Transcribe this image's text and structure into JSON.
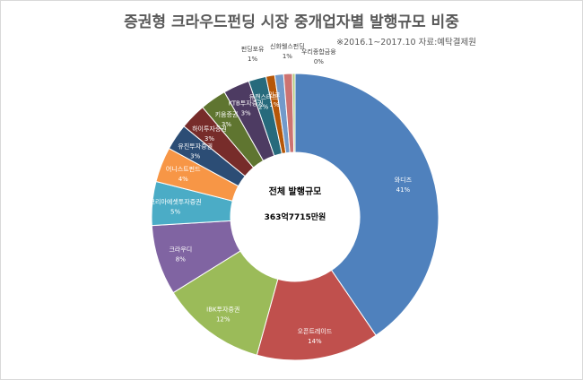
{
  "chart_data": {
    "type": "pie",
    "title": "증권형 크라우드펀딩 시장 중개업자별 발행규모 비중",
    "subtitle": "※2016.1~2017.10 자료:예탁결제원",
    "center_title": "전체 발행규모",
    "center_value": "363억7715만원",
    "legend": "none",
    "slices": [
      {
        "name": "와디즈",
        "value": 41,
        "label": "41%",
        "color": "#4f81bd"
      },
      {
        "name": "오픈트레이드",
        "value": 14,
        "label": "14%",
        "color": "#c0504d"
      },
      {
        "name": "IBK투자증권",
        "value": 12,
        "label": "12%",
        "color": "#9bbb59"
      },
      {
        "name": "크라우디",
        "value": 8,
        "label": "8%",
        "color": "#8064a2"
      },
      {
        "name": "코리아에셋투자증권",
        "value": 5,
        "label": "5%",
        "color": "#4bacc6"
      },
      {
        "name": "어니스트펀드",
        "value": 4,
        "label": "4%",
        "color": "#f79646"
      },
      {
        "name": "유진투자증권",
        "value": 3,
        "label": "3%",
        "color": "#2c4d75"
      },
      {
        "name": "하이투자증권",
        "value": 3,
        "label": "3%",
        "color": "#772c2a"
      },
      {
        "name": "키움증권",
        "value": 3,
        "label": "3%",
        "color": "#5f7530"
      },
      {
        "name": "KTB투자증권",
        "value": 3,
        "label": "3%",
        "color": "#4d3b62"
      },
      {
        "name": "유캔스타트",
        "value": 2,
        "label": "2%",
        "color": "#276a7c"
      },
      {
        "name": "인크",
        "value": 1,
        "label": "1%",
        "color": "#b65708"
      },
      {
        "name": "펀딩포유",
        "value": 1,
        "label": "1%",
        "color": "#729aca"
      },
      {
        "name": "신화웰스펀딩",
        "value": 1,
        "label": "1%",
        "color": "#cd7371"
      },
      {
        "name": "우리종합금융",
        "value": 0.3,
        "label": "0%",
        "color": "#afc97a"
      }
    ]
  }
}
